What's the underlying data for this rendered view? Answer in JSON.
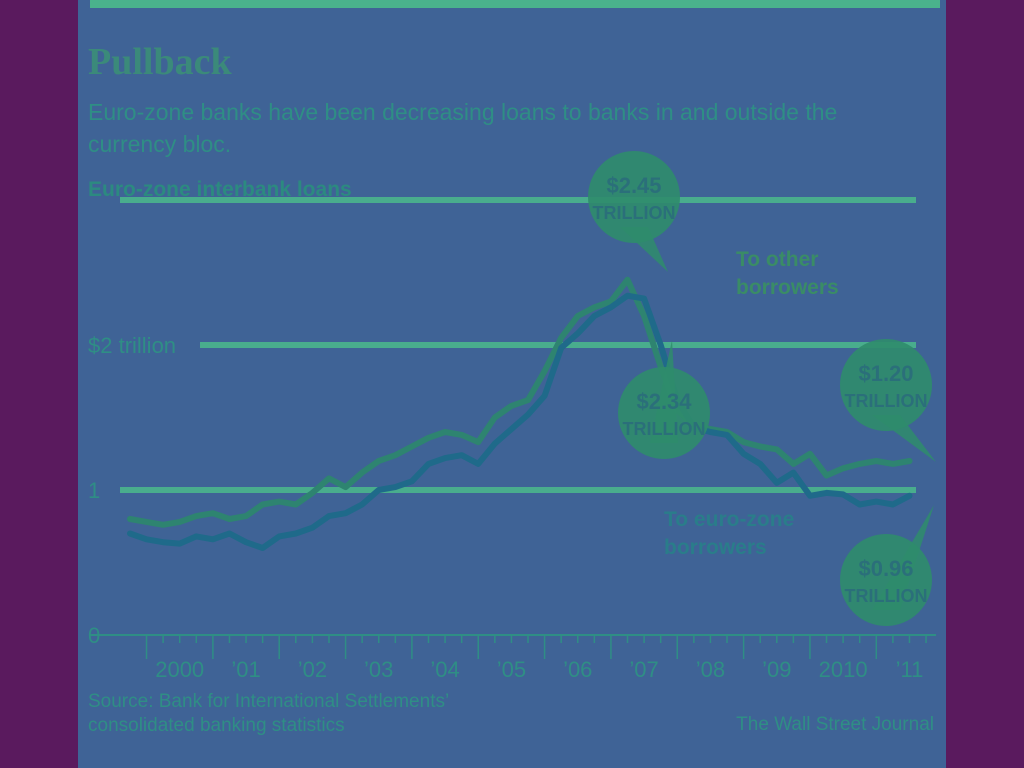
{
  "header": {
    "title": "Pullback",
    "subtitle": "Euro-zone banks have been decreasing loans to banks in and outside the currency bloc.",
    "chart_label": "Euro-zone interbank loans"
  },
  "footer": {
    "source": "Source: Bank for International Settlements’ consolidated banking statistics",
    "credit": "The Wall Street Journal"
  },
  "colors": {
    "background": "#5a1a5e",
    "panel": "#3f6396",
    "gridline": "#4ec58a",
    "line_other": "#2e8470",
    "line_euro": "#1f6a8a",
    "bubble": "#2f8c6c",
    "text": "#2f8e85"
  },
  "chart_data": {
    "type": "line",
    "title": "Euro-zone interbank loans",
    "x_tick_labels": [
      "2000",
      "’01",
      "’02",
      "’03",
      "’04",
      "’05",
      "’06",
      "’07",
      "’08",
      "’09",
      "2010",
      "’11"
    ],
    "y_tick_labels": [
      "$2 trillion",
      "1",
      "0"
    ],
    "ylim": [
      0,
      3
    ],
    "xlim": [
      1999.6,
      2011.9
    ],
    "series": [
      {
        "name": "To other borrowers",
        "x": [
          1999.75,
          2000.0,
          2000.25,
          2000.5,
          2000.75,
          2001.0,
          2001.25,
          2001.5,
          2001.75,
          2002.0,
          2002.25,
          2002.5,
          2002.75,
          2003.0,
          2003.25,
          2003.5,
          2003.75,
          2004.0,
          2004.25,
          2004.5,
          2004.75,
          2005.0,
          2005.25,
          2005.5,
          2005.75,
          2006.0,
          2006.25,
          2006.5,
          2006.75,
          2007.0,
          2007.25,
          2007.5,
          2007.75,
          2008.0,
          2008.25,
          2008.5,
          2008.75,
          2009.0,
          2009.25,
          2009.5,
          2009.75,
          2010.0,
          2010.25,
          2010.5,
          2010.75,
          2011.0,
          2011.25,
          2011.5
        ],
        "values": [
          0.8,
          0.78,
          0.76,
          0.78,
          0.82,
          0.84,
          0.8,
          0.82,
          0.9,
          0.92,
          0.9,
          0.98,
          1.08,
          1.02,
          1.12,
          1.2,
          1.24,
          1.3,
          1.36,
          1.4,
          1.38,
          1.33,
          1.5,
          1.58,
          1.62,
          1.82,
          2.05,
          2.2,
          2.26,
          2.3,
          2.45,
          2.2,
          1.85,
          1.55,
          1.45,
          1.42,
          1.4,
          1.33,
          1.3,
          1.28,
          1.18,
          1.25,
          1.1,
          1.15,
          1.18,
          1.2,
          1.18,
          1.2
        ]
      },
      {
        "name": "To euro-zone borrowers",
        "x": [
          1999.75,
          2000.0,
          2000.25,
          2000.5,
          2000.75,
          2001.0,
          2001.25,
          2001.5,
          2001.75,
          2002.0,
          2002.25,
          2002.5,
          2002.75,
          2003.0,
          2003.25,
          2003.5,
          2003.75,
          2004.0,
          2004.25,
          2004.5,
          2004.75,
          2005.0,
          2005.25,
          2005.5,
          2005.75,
          2006.0,
          2006.25,
          2006.5,
          2006.75,
          2007.0,
          2007.25,
          2007.5,
          2007.75,
          2008.0,
          2008.25,
          2008.5,
          2008.75,
          2009.0,
          2009.25,
          2009.5,
          2009.75,
          2010.0,
          2010.25,
          2010.5,
          2010.75,
          2011.0,
          2011.25,
          2011.5
        ],
        "values": [
          0.7,
          0.66,
          0.64,
          0.63,
          0.68,
          0.66,
          0.7,
          0.64,
          0.6,
          0.68,
          0.7,
          0.74,
          0.82,
          0.84,
          0.9,
          1.0,
          1.02,
          1.06,
          1.18,
          1.22,
          1.24,
          1.18,
          1.32,
          1.42,
          1.52,
          1.65,
          1.98,
          2.08,
          2.2,
          2.26,
          2.34,
          2.32,
          2.0,
          1.62,
          1.43,
          1.4,
          1.38,
          1.25,
          1.18,
          1.05,
          1.12,
          0.96,
          0.98,
          0.97,
          0.9,
          0.92,
          0.9,
          0.96
        ]
      }
    ],
    "series_labels": [
      "To other borrowers",
      "To euro-zone borrowers"
    ],
    "annotations": [
      {
        "value_text": "$2.45",
        "unit_text": "TRILLION",
        "series": 0,
        "x": 2007.25,
        "y": 2.45
      },
      {
        "value_text": "$2.34",
        "unit_text": "TRILLION",
        "series": 1,
        "x": 2007.25,
        "y": 2.34
      },
      {
        "value_text": "$1.20",
        "unit_text": "TRILLION",
        "series": 0,
        "x": 2011.5,
        "y": 1.2
      },
      {
        "value_text": "$0.96",
        "unit_text": "TRILLION",
        "series": 1,
        "x": 2011.5,
        "y": 0.96
      }
    ],
    "grid": true,
    "legend": "inline labels"
  }
}
